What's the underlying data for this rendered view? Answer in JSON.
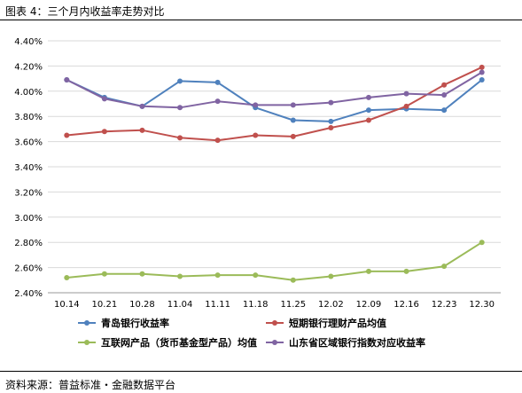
{
  "header": {
    "title": "图表 4：三个月内收益率走势对比"
  },
  "footer": {
    "source": "资料来源：普益标准・金融数据平台"
  },
  "chart_data": {
    "type": "line",
    "title": "",
    "xlabel": "",
    "ylabel": "",
    "categories": [
      "10.14",
      "10.21",
      "10.28",
      "11.04",
      "11.11",
      "11.18",
      "11.25",
      "12.02",
      "12.09",
      "12.16",
      "12.23",
      "12.30"
    ],
    "ylim": [
      2.4,
      4.4
    ],
    "yticks": [
      "2.40%",
      "2.60%",
      "2.80%",
      "3.00%",
      "3.20%",
      "3.40%",
      "3.60%",
      "3.80%",
      "4.00%",
      "4.20%",
      "4.40%"
    ],
    "grid": true,
    "legend_position": "bottom",
    "series": [
      {
        "name": "青岛银行收益率",
        "color": "#4f81bd",
        "values": [
          4.09,
          3.95,
          3.88,
          4.08,
          4.07,
          3.87,
          3.77,
          3.76,
          3.85,
          3.86,
          3.85,
          4.09
        ]
      },
      {
        "name": "短期银行理财产品均值",
        "color": "#c0504d",
        "values": [
          3.65,
          3.68,
          3.69,
          3.63,
          3.61,
          3.65,
          3.64,
          3.71,
          3.77,
          3.88,
          4.05,
          4.19
        ]
      },
      {
        "name": "互联网产品（货币基金型产品）均值",
        "color": "#9bbb59",
        "values": [
          2.52,
          2.55,
          2.55,
          2.53,
          2.54,
          2.54,
          2.5,
          2.53,
          2.57,
          2.57,
          2.61,
          2.8
        ]
      },
      {
        "name": "山东省区域银行指数对应收益率",
        "color": "#8064a2",
        "values": [
          4.09,
          3.94,
          3.88,
          3.87,
          3.92,
          3.89,
          3.89,
          3.91,
          3.95,
          3.98,
          3.97,
          4.15
        ]
      }
    ]
  }
}
